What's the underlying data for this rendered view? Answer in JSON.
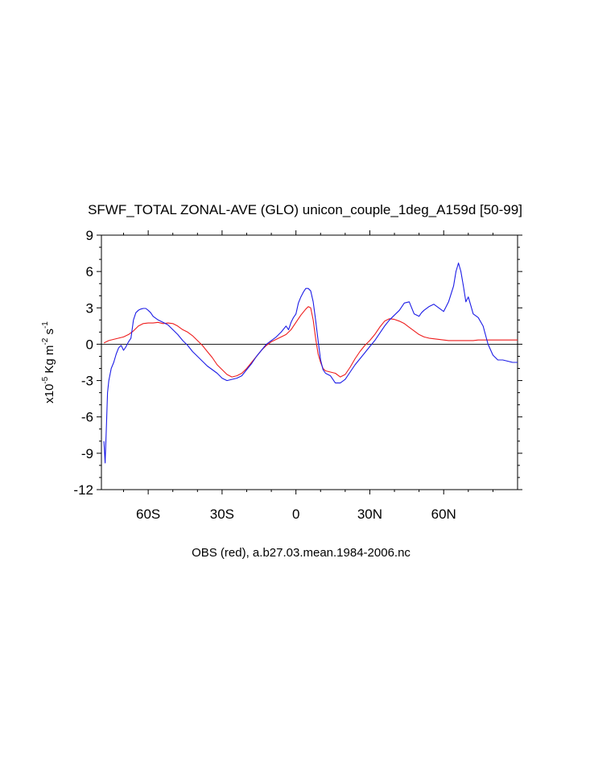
{
  "chart_data": {
    "type": "line",
    "title": "SFWF_TOTAL ZONAL-AVE (GLO) unicon_couple_1deg_A159d [50-99]",
    "subtitle": "OBS (red), a.b27.03.mean.1984-2006.nc",
    "ylabel": {
      "prefix": "x10",
      "exp": "-5",
      "unit1": " Kg m",
      "exp2": "-2",
      "unit2": " s",
      "exp3": "-1"
    },
    "xlim": [
      -79,
      90
    ],
    "ylim": [
      -12,
      9
    ],
    "x_ticks": [
      {
        "value": -60,
        "label": "60S"
      },
      {
        "value": -30,
        "label": "30S"
      },
      {
        "value": 0,
        "label": "0"
      },
      {
        "value": 30,
        "label": "30N"
      },
      {
        "value": 60,
        "label": "60N"
      }
    ],
    "y_ticks": [
      {
        "value": 9,
        "label": "9"
      },
      {
        "value": 6,
        "label": "6"
      },
      {
        "value": 3,
        "label": "3"
      },
      {
        "value": 0,
        "label": "0"
      },
      {
        "value": -3,
        "label": "-3"
      },
      {
        "value": -6,
        "label": "-6"
      },
      {
        "value": -9,
        "label": "-9"
      },
      {
        "value": -12,
        "label": "-12"
      }
    ],
    "zero_line": true,
    "series": [
      {
        "color": "#ee1c1c",
        "x": [
          -78,
          -76,
          -74,
          -72,
          -70,
          -68,
          -66,
          -64,
          -62,
          -60,
          -58,
          -56,
          -54,
          -52,
          -50,
          -48,
          -46,
          -44,
          -42,
          -40,
          -38,
          -36,
          -34,
          -32,
          -30,
          -28,
          -26,
          -24,
          -22,
          -20,
          -18,
          -16,
          -14,
          -12,
          -10,
          -8,
          -6,
          -4,
          -2,
          0,
          2,
          4,
          5,
          6,
          7,
          8,
          9,
          10,
          11,
          12,
          14,
          16,
          18,
          20,
          22,
          24,
          26,
          28,
          30,
          32,
          34,
          36,
          38,
          40,
          42,
          44,
          46,
          48,
          50,
          52,
          54,
          56,
          58,
          60,
          62,
          64,
          66,
          68,
          70,
          72,
          74,
          76,
          78,
          80,
          82,
          84,
          86,
          88,
          90
        ],
        "y": [
          0.1,
          0.3,
          0.4,
          0.5,
          0.6,
          0.8,
          1.1,
          1.5,
          1.7,
          1.75,
          1.75,
          1.8,
          1.7,
          1.75,
          1.7,
          1.5,
          1.2,
          1.0,
          0.7,
          0.3,
          -0.1,
          -0.6,
          -1.1,
          -1.7,
          -2.1,
          -2.5,
          -2.7,
          -2.6,
          -2.4,
          -2.0,
          -1.5,
          -1.0,
          -0.5,
          -0.1,
          0.2,
          0.4,
          0.6,
          0.8,
          1.2,
          1.8,
          2.4,
          2.9,
          3.1,
          3.0,
          2.0,
          0.5,
          -0.8,
          -1.5,
          -2.0,
          -2.2,
          -2.3,
          -2.4,
          -2.7,
          -2.5,
          -1.9,
          -1.2,
          -0.6,
          -0.1,
          0.3,
          0.8,
          1.4,
          1.9,
          2.1,
          2.05,
          1.9,
          1.7,
          1.4,
          1.1,
          0.8,
          0.6,
          0.5,
          0.45,
          0.4,
          0.35,
          0.3,
          0.3,
          0.3,
          0.3,
          0.3,
          0.3,
          0.35,
          0.35,
          0.35,
          0.35,
          0.35,
          0.35,
          0.35,
          0.35,
          0.35
        ]
      },
      {
        "color": "#1c1ce6",
        "x": [
          -78,
          -77.5,
          -77,
          -76.5,
          -76,
          -75,
          -74,
          -73,
          -72,
          -71,
          -70,
          -69,
          -68,
          -67,
          -66,
          -65,
          -64,
          -63,
          -62,
          -61,
          -60,
          -59,
          -58,
          -56,
          -54,
          -52,
          -50,
          -48,
          -46,
          -44,
          -42,
          -40,
          -38,
          -36,
          -34,
          -32,
          -30,
          -28,
          -26,
          -24,
          -22,
          -20,
          -18,
          -16,
          -14,
          -12,
          -10,
          -8,
          -6,
          -4,
          -3,
          -2,
          -1,
          0,
          1,
          2,
          3,
          4,
          5,
          6,
          7,
          8,
          9,
          10,
          11,
          12,
          14,
          16,
          18,
          20,
          22,
          24,
          26,
          28,
          30,
          32,
          34,
          36,
          38,
          40,
          42,
          44,
          46,
          48,
          50,
          51,
          52,
          54,
          56,
          58,
          60,
          62,
          64,
          65,
          66,
          67,
          68,
          69,
          70,
          71,
          72,
          74,
          76,
          78,
          80,
          82,
          84,
          86,
          88,
          90
        ],
        "y": [
          -8.0,
          -9.8,
          -7.0,
          -4.0,
          -3.0,
          -2.0,
          -1.5,
          -0.8,
          -0.3,
          -0.1,
          -0.5,
          -0.2,
          0.2,
          0.5,
          2.0,
          2.6,
          2.8,
          2.9,
          2.95,
          2.95,
          2.8,
          2.6,
          2.3,
          2.0,
          1.8,
          1.6,
          1.2,
          0.8,
          0.3,
          -0.1,
          -0.6,
          -1.0,
          -1.4,
          -1.8,
          -2.1,
          -2.4,
          -2.8,
          -3.0,
          -2.9,
          -2.8,
          -2.6,
          -2.1,
          -1.6,
          -1.0,
          -0.5,
          0.0,
          0.3,
          0.6,
          1.0,
          1.5,
          1.2,
          1.8,
          2.2,
          2.5,
          3.4,
          3.9,
          4.3,
          4.6,
          4.6,
          4.4,
          3.5,
          2.0,
          0.3,
          -1.3,
          -2.1,
          -2.4,
          -2.6,
          -3.2,
          -3.2,
          -2.9,
          -2.3,
          -1.7,
          -1.2,
          -0.7,
          -0.2,
          0.3,
          0.9,
          1.5,
          2.0,
          2.4,
          2.8,
          3.4,
          3.5,
          2.5,
          2.3,
          2.6,
          2.8,
          3.1,
          3.3,
          3.0,
          2.7,
          3.5,
          4.8,
          6.0,
          6.7,
          6.0,
          4.8,
          3.5,
          3.9,
          3.2,
          2.5,
          2.2,
          1.5,
          0.0,
          -0.9,
          -1.3,
          -1.3,
          -1.4,
          -1.5,
          -1.5
        ]
      }
    ]
  }
}
